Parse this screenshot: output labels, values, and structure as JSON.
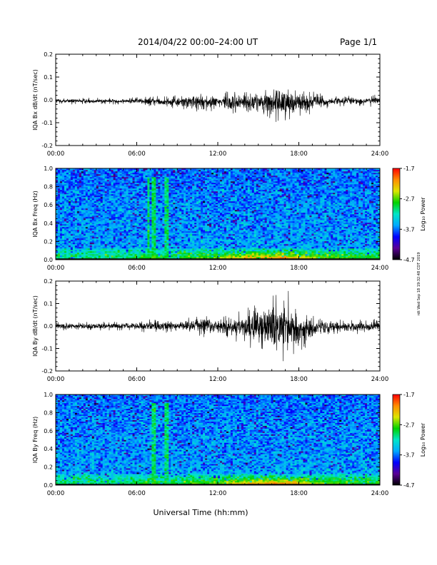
{
  "header": {
    "date_range": "2014/04/22  00:00–24:00 UT",
    "page": "Page 1/1"
  },
  "side_stamp": "rdt Wed Sep 18 19:32:48 CDT 2019",
  "colors": {
    "trace": "#000000",
    "background": "#ffffff"
  },
  "chart_data": [
    {
      "type": "line",
      "ylabel": "IQA Bx dB/dt (nT/sec)",
      "ylim": [
        -0.2,
        0.2
      ],
      "y_ticks": [
        "0.2",
        "0.1",
        "0.0",
        "-0.1",
        "-0.2"
      ],
      "x_ticks": [
        "00:00",
        "06:00",
        "12:00",
        "18:00",
        "24:00"
      ],
      "xlim_hours": [
        0,
        24
      ],
      "series": [
        {
          "x_hours": [
            0,
            1,
            2,
            3,
            4,
            5,
            6,
            7,
            8,
            9,
            10,
            11,
            12,
            13,
            14,
            15,
            16,
            17,
            18,
            19,
            20,
            21,
            22,
            23,
            24
          ],
          "upper": [
            0.01,
            0.01,
            0.01,
            0.01,
            0.01,
            0.01,
            0.015,
            0.02,
            0.02,
            0.02,
            0.04,
            0.035,
            0.03,
            0.05,
            0.06,
            0.05,
            0.07,
            0.1,
            0.06,
            0.045,
            0.02,
            0.02,
            0.02,
            0.02,
            0.025
          ],
          "lower": [
            -0.02,
            -0.02,
            -0.02,
            -0.02,
            -0.02,
            -0.02,
            -0.025,
            -0.03,
            -0.04,
            -0.04,
            -0.06,
            -0.05,
            -0.05,
            -0.07,
            -0.08,
            -0.07,
            -0.09,
            -0.12,
            -0.08,
            -0.06,
            -0.04,
            -0.03,
            -0.03,
            -0.03,
            -0.03
          ]
        }
      ]
    },
    {
      "type": "heatmap",
      "ylabel": "IQA Bx Freq (Hz)",
      "ylim": [
        0,
        1.0
      ],
      "y_ticks": [
        "1.0",
        "0.8",
        "0.6",
        "0.4",
        "0.2",
        "0.0"
      ],
      "x_ticks": [
        "00:00",
        "06:00",
        "12:00",
        "18:00",
        "24:00"
      ],
      "colorbar": {
        "label": "Log₁₀ Power",
        "ticks": [
          "-1.7",
          "-2.7",
          "-3.7",
          "-4.7"
        ],
        "range": [
          -4.7,
          -1.7
        ]
      },
      "low_freq_power_by_hour": [
        -2.9,
        -2.9,
        -2.9,
        -2.9,
        -2.9,
        -2.9,
        -2.8,
        -2.6,
        -2.8,
        -2.8,
        -2.6,
        -2.6,
        -2.5,
        -2.3,
        -2.2,
        -2.1,
        -2.0,
        -2.0,
        -2.2,
        -2.3,
        -2.5,
        -2.6,
        -2.7,
        -2.7,
        -2.7
      ],
      "vertical_features_hours": [
        6.9,
        7.3,
        8.2
      ]
    },
    {
      "type": "line",
      "ylabel": "IQA By dB/dt (nT/sec)",
      "ylim": [
        -0.2,
        0.2
      ],
      "y_ticks": [
        "0.2",
        "0.1",
        "0.0",
        "-0.1",
        "-0.2"
      ],
      "x_ticks": [
        "00:00",
        "06:00",
        "12:00",
        "18:00",
        "24:00"
      ],
      "xlim_hours": [
        0,
        24
      ],
      "series": [
        {
          "x_hours": [
            0,
            1,
            2,
            3,
            4,
            5,
            6,
            7,
            8,
            9,
            10,
            11,
            12,
            13,
            14,
            15,
            16,
            17,
            18,
            19,
            20,
            21,
            22,
            23,
            24
          ],
          "upper": [
            0.02,
            0.02,
            0.02,
            0.02,
            0.02,
            0.02,
            0.025,
            0.03,
            0.03,
            0.03,
            0.04,
            0.06,
            0.04,
            0.05,
            0.08,
            0.1,
            0.15,
            0.18,
            0.1,
            0.06,
            0.04,
            0.03,
            0.03,
            0.03,
            0.04
          ],
          "lower": [
            -0.02,
            -0.02,
            -0.02,
            -0.02,
            -0.02,
            -0.02,
            -0.025,
            -0.03,
            -0.03,
            -0.03,
            -0.04,
            -0.05,
            -0.04,
            -0.07,
            -0.09,
            -0.12,
            -0.16,
            -0.18,
            -0.14,
            -0.08,
            -0.05,
            -0.04,
            -0.04,
            -0.04,
            -0.04
          ]
        }
      ]
    },
    {
      "type": "heatmap",
      "ylabel": "IQA By Freq (Hz)",
      "ylim": [
        0,
        1.0
      ],
      "y_ticks": [
        "1.0",
        "0.8",
        "0.6",
        "0.4",
        "0.2",
        "0.0"
      ],
      "x_ticks": [
        "00:00",
        "06:00",
        "12:00",
        "18:00",
        "24:00"
      ],
      "colorbar": {
        "label": "Log₁₀ Power",
        "ticks": [
          "-1.7",
          "-2.7",
          "-3.7",
          "-4.7"
        ],
        "range": [
          -4.7,
          -1.7
        ]
      },
      "low_freq_power_by_hour": [
        -2.9,
        -2.9,
        -2.9,
        -2.9,
        -2.9,
        -2.9,
        -2.8,
        -2.6,
        -2.8,
        -2.8,
        -2.6,
        -2.6,
        -2.5,
        -2.3,
        -2.2,
        -2.1,
        -2.0,
        -2.0,
        -2.2,
        -2.3,
        -2.5,
        -2.6,
        -2.7,
        -2.7,
        -2.7
      ],
      "vertical_features_hours": [
        7.3,
        8.2
      ]
    }
  ],
  "xlabel": "Universal Time (hh:mm)"
}
